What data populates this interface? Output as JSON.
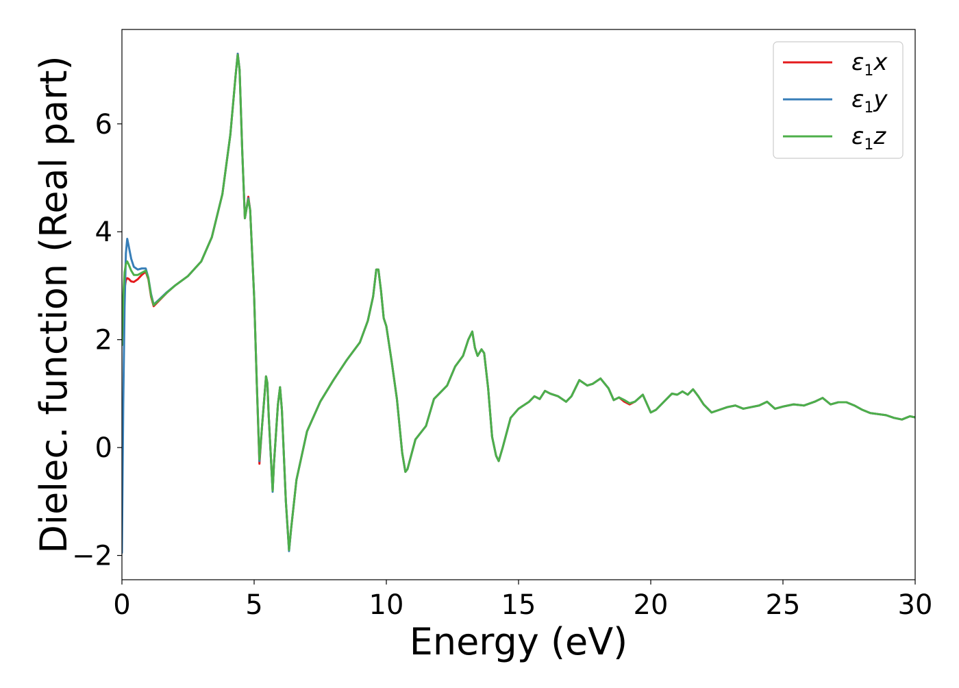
{
  "chart_data": {
    "type": "line",
    "title": "",
    "xlabel": "Energy (eV)",
    "ylabel": "Dielec. function (Real part)",
    "xlim": [
      0,
      30
    ],
    "ylim": [
      -2.45,
      7.75
    ],
    "xticks": [
      0,
      5,
      10,
      15,
      20,
      25,
      30
    ],
    "yticks": [
      -2,
      0,
      2,
      4,
      6
    ],
    "grid": false,
    "legend_position": "top-right",
    "series": [
      {
        "name": "ε1x",
        "legend": {
          "base": "ε",
          "sub": "1",
          "var": "x"
        },
        "color": "#e41a1c",
        "x": [
          0,
          0.05,
          0.1,
          0.15,
          0.2,
          0.25,
          0.35,
          0.45,
          0.6,
          0.75,
          0.9,
          1.0,
          1.1,
          1.2,
          1.4,
          1.7,
          2.0,
          2.5,
          3.0,
          3.4,
          3.8,
          4.1,
          4.3,
          4.38,
          4.45,
          4.55,
          4.65,
          4.72,
          4.78,
          4.85,
          5.0,
          5.1,
          5.2,
          5.3,
          5.45,
          5.5,
          5.55,
          5.7,
          5.75,
          5.9,
          5.98,
          6.05,
          6.2,
          6.32,
          6.4,
          6.6,
          7.0,
          7.5,
          8.0,
          8.5,
          9.0,
          9.3,
          9.5,
          9.62,
          9.7,
          9.8,
          9.9,
          10.0,
          10.2,
          10.4,
          10.6,
          10.72,
          10.8,
          11.1,
          11.5,
          11.8,
          12.0,
          12.3,
          12.6,
          12.9,
          13.1,
          13.25,
          13.35,
          13.45,
          13.6,
          13.7,
          13.85,
          14.0,
          14.15,
          14.25,
          14.4,
          14.7,
          15.0,
          15.4,
          15.6,
          15.8,
          16.0,
          16.2,
          16.5,
          16.8,
          17.0,
          17.3,
          17.6,
          17.8,
          18.1,
          18.4,
          18.6,
          18.8,
          19.0,
          19.2,
          19.4,
          19.7,
          20.0,
          20.2,
          20.5,
          20.8,
          21.0,
          21.2,
          21.4,
          21.6,
          21.8,
          22.0,
          22.3,
          22.6,
          22.9,
          23.2,
          23.5,
          23.8,
          24.1,
          24.4,
          24.7,
          25.0,
          25.4,
          25.8,
          26.2,
          26.5,
          26.8,
          27.1,
          27.4,
          27.7,
          28.0,
          28.3,
          28.6,
          28.9,
          29.2,
          29.5,
          29.8,
          30.0
        ],
        "y": [
          2.05,
          2.6,
          2.95,
          3.1,
          3.14,
          3.13,
          3.08,
          3.07,
          3.12,
          3.2,
          3.26,
          3.12,
          2.8,
          2.62,
          2.72,
          2.87,
          3.0,
          3.18,
          3.45,
          3.9,
          4.7,
          5.8,
          6.9,
          7.3,
          7.0,
          5.5,
          4.25,
          4.45,
          4.65,
          4.4,
          2.8,
          1.2,
          -0.3,
          0.4,
          1.32,
          1.2,
          0.6,
          -0.8,
          -0.3,
          0.8,
          1.12,
          0.7,
          -1.0,
          -1.9,
          -1.5,
          -0.6,
          0.3,
          0.85,
          1.25,
          1.62,
          1.95,
          2.35,
          2.8,
          3.3,
          3.3,
          2.9,
          2.4,
          2.25,
          1.6,
          0.9,
          -0.1,
          -0.45,
          -0.4,
          0.15,
          0.4,
          0.9,
          1.0,
          1.15,
          1.5,
          1.7,
          2.0,
          2.15,
          1.85,
          1.7,
          1.82,
          1.75,
          1.1,
          0.2,
          -0.15,
          -0.25,
          0.0,
          0.55,
          0.72,
          0.85,
          0.95,
          0.9,
          1.05,
          1.0,
          0.95,
          0.85,
          0.95,
          1.25,
          1.15,
          1.18,
          1.28,
          1.1,
          0.88,
          0.93,
          0.85,
          0.8,
          0.85,
          0.98,
          0.65,
          0.7,
          0.85,
          1.0,
          0.98,
          1.04,
          0.98,
          1.08,
          0.95,
          0.8,
          0.65,
          0.7,
          0.75,
          0.78,
          0.72,
          0.75,
          0.78,
          0.85,
          0.72,
          0.76,
          0.8,
          0.78,
          0.85,
          0.92,
          0.8,
          0.84,
          0.84,
          0.78,
          0.7,
          0.64,
          0.62,
          0.6,
          0.55,
          0.52,
          0.58,
          0.56
        ]
      },
      {
        "name": "ε1y",
        "legend": {
          "base": "ε",
          "sub": "1",
          "var": "y"
        },
        "color": "#377eb8",
        "x": [
          0,
          0.05,
          0.1,
          0.15,
          0.2,
          0.25,
          0.35,
          0.45,
          0.6,
          0.75,
          0.9,
          1.0,
          1.1,
          1.2,
          1.4,
          1.7,
          2.0,
          2.5,
          3.0,
          3.4,
          3.8,
          4.1,
          4.3,
          4.38,
          4.45,
          4.55,
          4.65,
          4.72,
          4.78,
          4.85,
          5.0,
          5.1,
          5.2,
          5.3,
          5.45,
          5.5,
          5.55,
          5.7,
          5.75,
          5.9,
          5.98,
          6.05,
          6.2,
          6.32,
          6.4,
          6.6,
          7.0,
          7.5,
          8.0,
          8.5,
          9.0,
          9.3,
          9.5,
          9.62,
          9.7,
          9.8,
          9.9,
          10.0,
          10.2,
          10.4,
          10.6,
          10.72,
          10.8,
          11.1,
          11.5,
          11.8,
          12.0,
          12.3,
          12.6,
          12.9,
          13.1,
          13.25,
          13.35,
          13.45,
          13.6,
          13.7,
          13.85,
          14.0,
          14.15,
          14.25,
          14.4,
          14.7,
          15.0,
          15.4,
          15.6,
          15.8,
          16.0,
          16.2,
          16.5,
          16.8,
          17.0,
          17.3,
          17.6,
          17.8,
          18.1,
          18.4,
          18.6,
          18.8,
          19.0,
          19.2,
          19.4,
          19.7,
          20.0,
          20.2,
          20.5,
          20.8,
          21.0,
          21.2,
          21.4,
          21.6,
          21.8,
          22.0,
          22.3,
          22.6,
          22.9,
          23.2,
          23.5,
          23.8,
          24.1,
          24.4,
          24.7,
          25.0,
          25.4,
          25.8,
          26.2,
          26.5,
          26.8,
          27.1,
          27.4,
          27.7,
          28.0,
          28.3,
          28.6,
          28.9,
          29.2,
          29.5,
          29.8,
          30.0
        ],
        "y": [
          -1.95,
          0.8,
          2.6,
          3.6,
          3.87,
          3.75,
          3.5,
          3.35,
          3.3,
          3.32,
          3.32,
          3.15,
          2.85,
          2.65,
          2.74,
          2.88,
          3.0,
          3.18,
          3.45,
          3.9,
          4.7,
          5.8,
          6.9,
          7.3,
          7.0,
          5.5,
          4.25,
          4.45,
          4.62,
          4.4,
          2.8,
          1.2,
          -0.25,
          0.4,
          1.32,
          1.2,
          0.6,
          -0.82,
          -0.3,
          0.8,
          1.12,
          0.7,
          -1.0,
          -1.92,
          -1.5,
          -0.6,
          0.3,
          0.85,
          1.25,
          1.62,
          1.95,
          2.35,
          2.8,
          3.3,
          3.3,
          2.9,
          2.4,
          2.25,
          1.6,
          0.9,
          -0.1,
          -0.45,
          -0.4,
          0.15,
          0.4,
          0.9,
          1.0,
          1.15,
          1.5,
          1.7,
          2.0,
          2.15,
          1.85,
          1.7,
          1.82,
          1.75,
          1.1,
          0.2,
          -0.15,
          -0.25,
          0.0,
          0.55,
          0.72,
          0.85,
          0.95,
          0.9,
          1.05,
          1.0,
          0.95,
          0.85,
          0.95,
          1.25,
          1.15,
          1.18,
          1.28,
          1.1,
          0.88,
          0.93,
          0.88,
          0.82,
          0.85,
          0.98,
          0.65,
          0.7,
          0.85,
          1.0,
          0.98,
          1.04,
          0.98,
          1.08,
          0.95,
          0.8,
          0.65,
          0.7,
          0.75,
          0.78,
          0.72,
          0.75,
          0.78,
          0.85,
          0.72,
          0.76,
          0.8,
          0.78,
          0.85,
          0.92,
          0.8,
          0.84,
          0.84,
          0.78,
          0.7,
          0.64,
          0.62,
          0.6,
          0.55,
          0.52,
          0.58,
          0.56
        ]
      },
      {
        "name": "ε1z",
        "legend": {
          "base": "ε",
          "sub": "1",
          "var": "z"
        },
        "color": "#4daf4a",
        "x": [
          0,
          0.05,
          0.1,
          0.15,
          0.2,
          0.25,
          0.35,
          0.45,
          0.6,
          0.75,
          0.9,
          1.0,
          1.1,
          1.2,
          1.4,
          1.7,
          2.0,
          2.5,
          3.0,
          3.4,
          3.8,
          4.1,
          4.3,
          4.38,
          4.45,
          4.55,
          4.65,
          4.72,
          4.78,
          4.85,
          5.0,
          5.1,
          5.2,
          5.3,
          5.45,
          5.5,
          5.55,
          5.7,
          5.75,
          5.9,
          5.98,
          6.05,
          6.2,
          6.32,
          6.4,
          6.6,
          7.0,
          7.5,
          8.0,
          8.5,
          9.0,
          9.3,
          9.5,
          9.62,
          9.7,
          9.8,
          9.9,
          10.0,
          10.2,
          10.4,
          10.6,
          10.72,
          10.8,
          11.1,
          11.5,
          11.8,
          12.0,
          12.3,
          12.6,
          12.9,
          13.1,
          13.25,
          13.35,
          13.45,
          13.6,
          13.7,
          13.85,
          14.0,
          14.15,
          14.25,
          14.4,
          14.7,
          15.0,
          15.4,
          15.6,
          15.8,
          16.0,
          16.2,
          16.5,
          16.8,
          17.0,
          17.3,
          17.6,
          17.8,
          18.1,
          18.4,
          18.6,
          18.8,
          19.0,
          19.2,
          19.4,
          19.7,
          20.0,
          20.2,
          20.5,
          20.8,
          21.0,
          21.2,
          21.4,
          21.6,
          21.8,
          22.0,
          22.3,
          22.6,
          22.9,
          23.2,
          23.5,
          23.8,
          24.1,
          24.4,
          24.7,
          25.0,
          25.4,
          25.8,
          26.2,
          26.5,
          26.8,
          27.1,
          27.4,
          27.7,
          28.0,
          28.3,
          28.6,
          28.9,
          29.2,
          29.5,
          29.8,
          30.0
        ],
        "y": [
          1.9,
          2.8,
          3.25,
          3.4,
          3.45,
          3.4,
          3.28,
          3.2,
          3.2,
          3.24,
          3.28,
          3.14,
          2.82,
          2.64,
          2.73,
          2.87,
          3.0,
          3.18,
          3.45,
          3.9,
          4.7,
          5.8,
          6.9,
          7.28,
          7.0,
          5.5,
          4.25,
          4.45,
          4.6,
          4.4,
          2.8,
          1.2,
          -0.22,
          0.4,
          1.32,
          1.2,
          0.6,
          -0.8,
          -0.3,
          0.8,
          1.12,
          0.7,
          -1.0,
          -1.9,
          -1.5,
          -0.6,
          0.3,
          0.85,
          1.25,
          1.62,
          1.95,
          2.35,
          2.8,
          3.3,
          3.3,
          2.9,
          2.4,
          2.25,
          1.6,
          0.9,
          -0.1,
          -0.45,
          -0.4,
          0.15,
          0.4,
          0.9,
          1.0,
          1.15,
          1.5,
          1.7,
          2.0,
          2.15,
          1.85,
          1.7,
          1.82,
          1.75,
          1.1,
          0.2,
          -0.15,
          -0.25,
          0.0,
          0.55,
          0.72,
          0.85,
          0.95,
          0.9,
          1.05,
          1.0,
          0.95,
          0.85,
          0.95,
          1.25,
          1.15,
          1.18,
          1.28,
          1.1,
          0.88,
          0.93,
          0.88,
          0.82,
          0.85,
          0.98,
          0.65,
          0.7,
          0.85,
          1.0,
          0.98,
          1.04,
          0.98,
          1.08,
          0.95,
          0.8,
          0.65,
          0.7,
          0.75,
          0.78,
          0.72,
          0.75,
          0.78,
          0.85,
          0.72,
          0.76,
          0.8,
          0.78,
          0.85,
          0.92,
          0.8,
          0.84,
          0.84,
          0.78,
          0.7,
          0.64,
          0.62,
          0.6,
          0.55,
          0.52,
          0.58,
          0.56
        ]
      }
    ]
  }
}
